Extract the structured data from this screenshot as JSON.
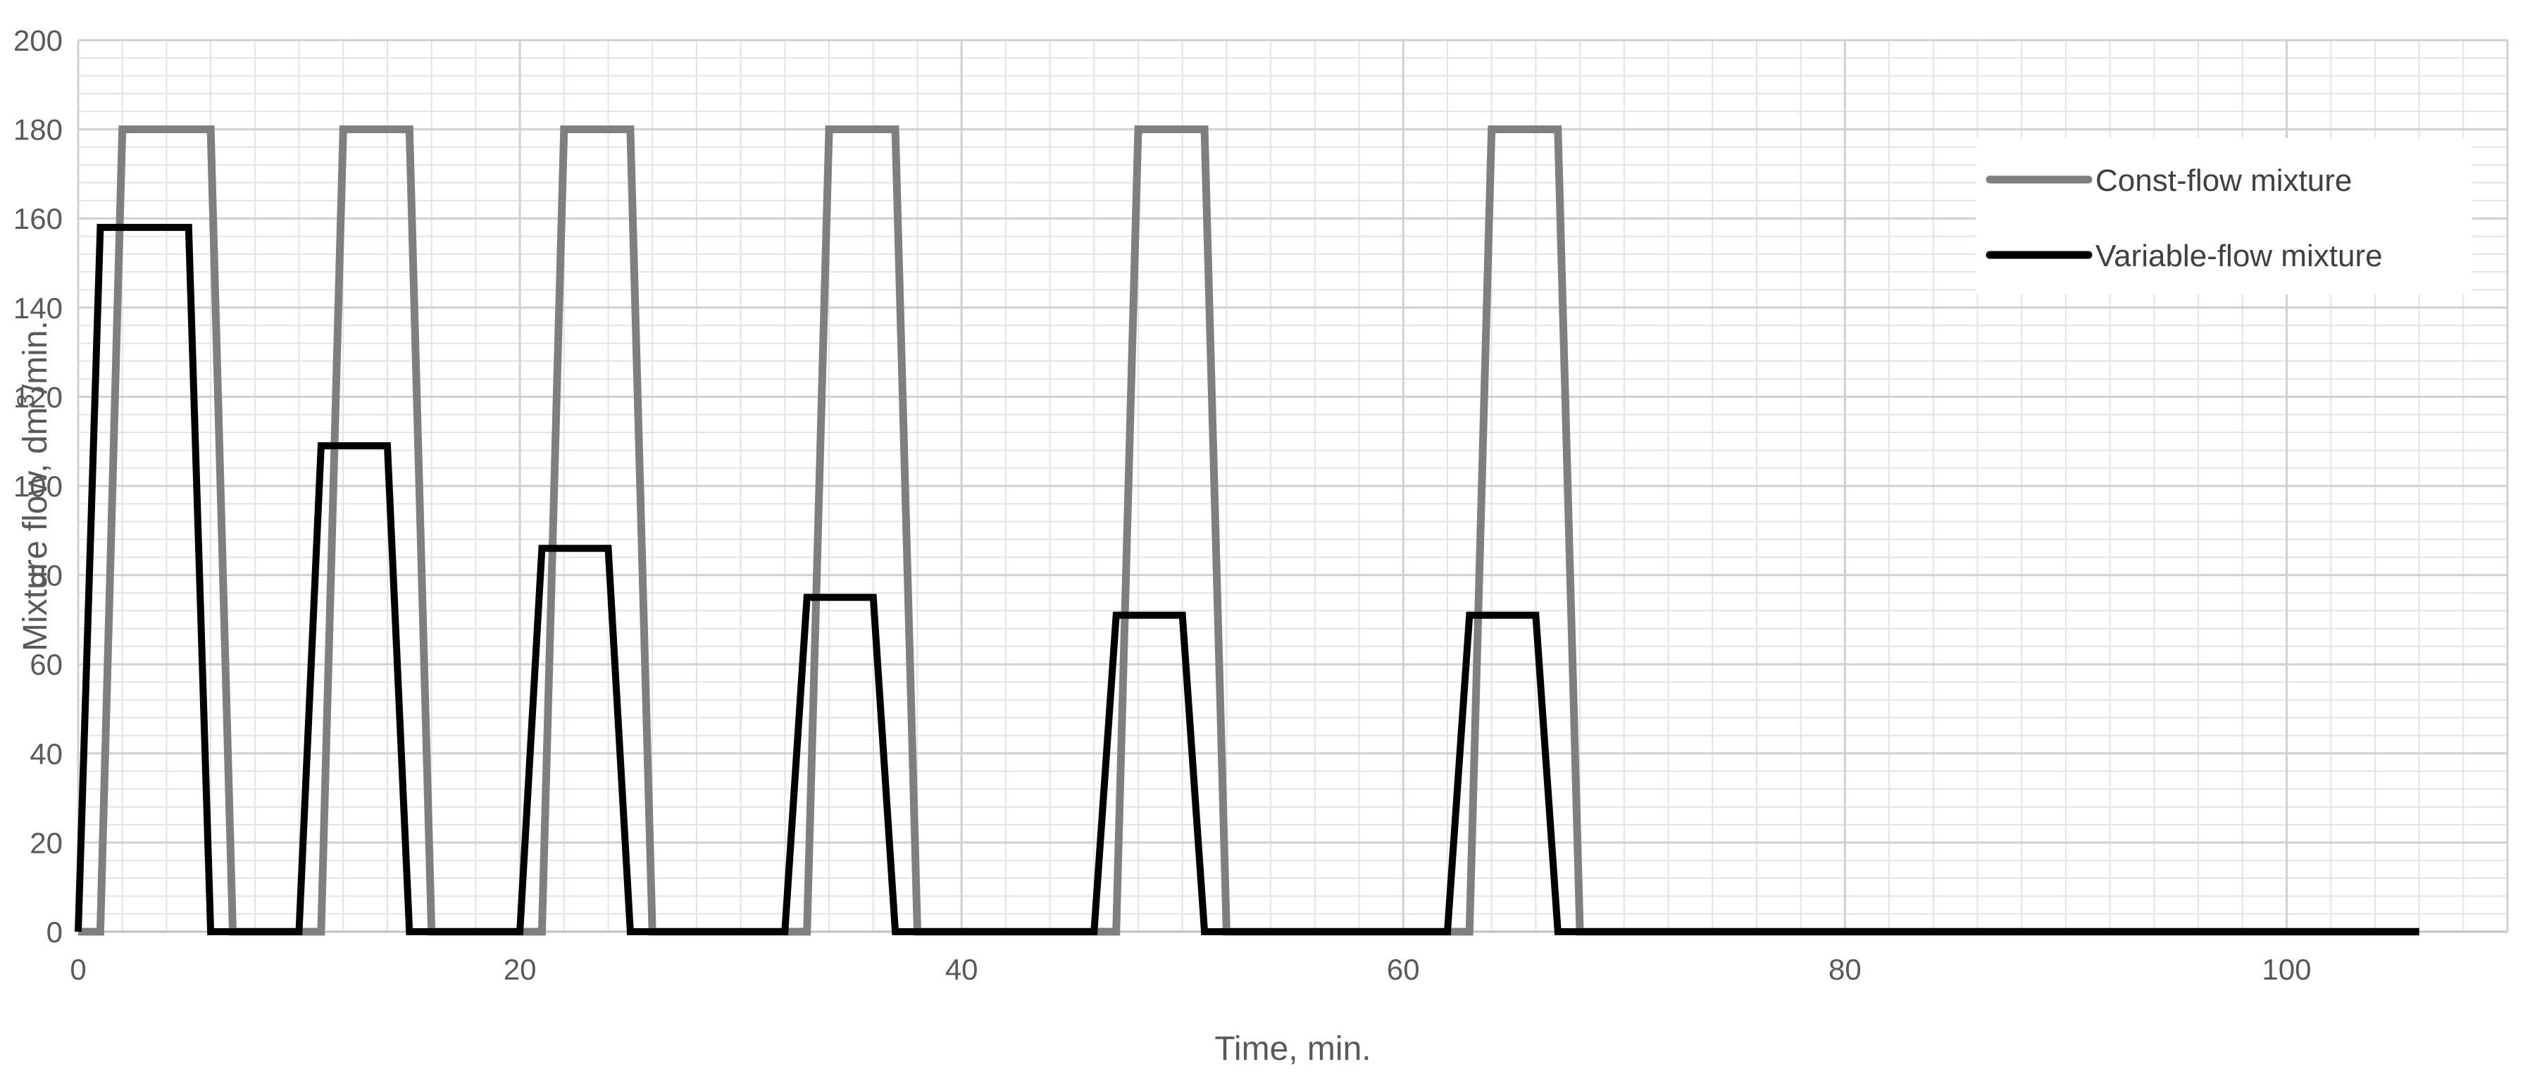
{
  "chart_data": {
    "type": "line",
    "xlabel": "Time, min.",
    "ylabel": "Mixture flow, dm3/min.",
    "ylabel_parts": {
      "before": "Mixture flow, dm",
      "sup": "3",
      "after": "/min."
    },
    "xlim": [
      0,
      110
    ],
    "ylim": [
      0,
      200
    ],
    "x_ticks": [
      0,
      20,
      40,
      60,
      80,
      100
    ],
    "y_ticks": [
      0,
      20,
      40,
      60,
      80,
      100,
      120,
      140,
      160,
      180,
      200
    ],
    "grid": true,
    "legend_position": "top-right",
    "series": [
      {
        "name": "Const-flow mixture",
        "color": "#7f7f7f",
        "x": [
          0,
          1,
          2,
          6,
          7,
          10,
          11,
          12,
          15,
          16,
          20,
          21,
          22,
          25,
          26,
          32,
          33,
          34,
          37,
          38,
          46,
          47,
          48,
          51,
          52,
          62,
          63,
          64,
          67,
          68,
          106
        ],
        "y": [
          0,
          0,
          180,
          180,
          0,
          0,
          0,
          180,
          180,
          0,
          0,
          0,
          180,
          180,
          0,
          0,
          0,
          180,
          180,
          0,
          0,
          0,
          180,
          180,
          0,
          0,
          0,
          180,
          180,
          0,
          0
        ]
      },
      {
        "name": "Variable-flow mixture",
        "color": "#000000",
        "x": [
          0,
          1,
          5,
          6,
          10,
          11,
          14,
          15,
          20,
          21,
          24,
          25,
          32,
          33,
          36,
          37,
          46,
          47,
          50,
          51,
          62,
          63,
          66,
          67,
          106
        ],
        "y": [
          0,
          158,
          158,
          0,
          0,
          109,
          109,
          0,
          0,
          86,
          86,
          0,
          0,
          75,
          75,
          0,
          0,
          71,
          71,
          0,
          0,
          71,
          71,
          0,
          0
        ]
      }
    ]
  }
}
